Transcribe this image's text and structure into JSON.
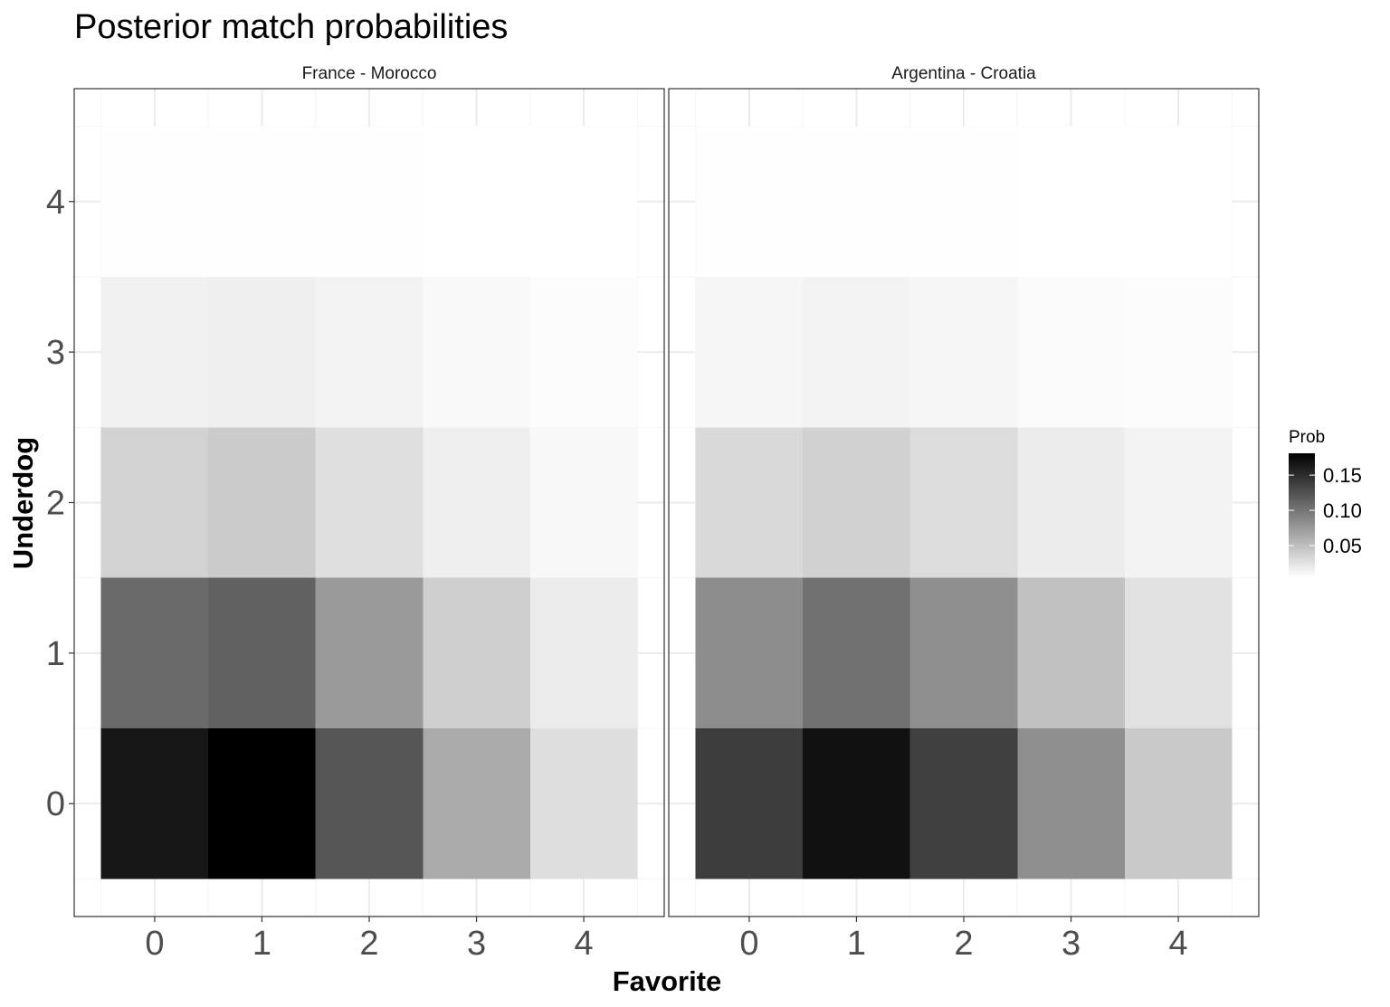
{
  "chart_data": {
    "type": "heatmap",
    "title": "Posterior match probabilities",
    "xlabel": "Favorite",
    "ylabel": "Underdog",
    "x_ticks": [
      "0",
      "1",
      "2",
      "3",
      "4"
    ],
    "y_ticks": [
      "0",
      "1",
      "2",
      "3",
      "4"
    ],
    "legend": {
      "title": "Prob",
      "position": "right",
      "ticks": [
        "0.05",
        "0.10",
        "0.15"
      ],
      "range": [
        0.005,
        0.181
      ],
      "low_color": "#ffffff",
      "high_color": "#000000"
    },
    "grid": true,
    "facets": [
      {
        "label": "France - Morocco",
        "values_by_underdog_row": [
          [
            0.165,
            0.181,
            0.122,
            0.064,
            0.028
          ],
          [
            0.108,
            0.114,
            0.075,
            0.038,
            0.019
          ],
          [
            0.036,
            0.041,
            0.027,
            0.016,
            0.01
          ],
          [
            0.015,
            0.016,
            0.013,
            0.009,
            0.007
          ],
          [
            0.006,
            0.006,
            0.006,
            0.005,
            0.005
          ]
        ]
      },
      {
        "label": "Argentina - Croatia",
        "values_by_underdog_row": [
          [
            0.139,
            0.169,
            0.137,
            0.082,
            0.042
          ],
          [
            0.084,
            0.103,
            0.082,
            0.048,
            0.026
          ],
          [
            0.031,
            0.037,
            0.029,
            0.018,
            0.013
          ],
          [
            0.011,
            0.013,
            0.011,
            0.008,
            0.007
          ],
          [
            0.006,
            0.006,
            0.006,
            0.005,
            0.005
          ]
        ]
      }
    ]
  }
}
